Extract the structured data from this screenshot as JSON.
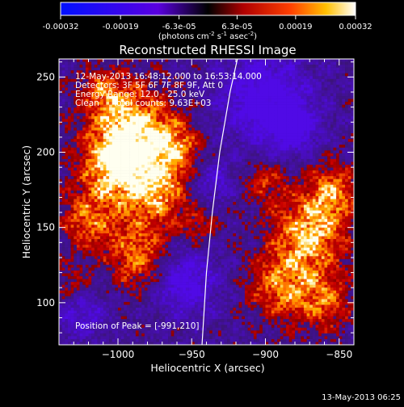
{
  "colorbar": {
    "ticks": [
      {
        "value": -0.00032,
        "label": "-0.00032"
      },
      {
        "value": -0.00019,
        "label": "-0.00019"
      },
      {
        "value": -6.3e-05,
        "label": "-6.3e-05"
      },
      {
        "value": 6.3e-05,
        "label": "6.3e-05"
      },
      {
        "value": 0.00019,
        "label": "0.00019"
      },
      {
        "value": 0.00032,
        "label": "0.00032"
      }
    ],
    "range": [
      -0.00032,
      0.00032
    ],
    "units_text": "(photons cm",
    "units_sup1": "-2",
    "units_mid": " s",
    "units_sup2": "-1",
    "units_end": " asec",
    "units_sup3": "-2",
    "units_close": ")"
  },
  "chart_data": {
    "type": "heatmap",
    "title": "Reconstructed RHESSI Image",
    "xlabel": "Heliocentric X (arcsec)",
    "ylabel": "Heliocentric Y (arcsec)",
    "xlim": [
      -1040,
      -840
    ],
    "ylim": [
      72,
      262
    ],
    "xticks": [
      {
        "value": -1000,
        "label": "−1000"
      },
      {
        "value": -950,
        "label": "−950"
      },
      {
        "value": -900,
        "label": "−900"
      },
      {
        "value": -850,
        "label": "−850"
      }
    ],
    "yticks": [
      {
        "value": 100,
        "label": "100"
      },
      {
        "value": 150,
        "label": "150"
      },
      {
        "value": 200,
        "label": "200"
      },
      {
        "value": 250,
        "label": "250"
      }
    ],
    "annotations": [
      "12-May-2013 16:48:12.000 to 16:53:14.000",
      "Detectors: 3F 5F 6F 7F 8F 9F, Att 0",
      "Energy Range: 12.0 - 25.0 keV",
      "Clean     Total counts: 9.63E+03"
    ],
    "peak_text": "Position of Peak = [-991,210]",
    "peak": [
      -991,
      210
    ],
    "limb_points": [
      [
        -943,
        72
      ],
      [
        -940,
        120
      ],
      [
        -936,
        160
      ],
      [
        -931,
        200
      ],
      [
        -924,
        240
      ],
      [
        -919,
        262
      ]
    ],
    "colormap": "red-temperature (blue negative, red-yellow-white positive)"
  },
  "timestamp": "13-May-2013 06:25"
}
